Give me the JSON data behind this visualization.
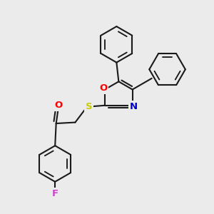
{
  "bg_color": "#ebebeb",
  "bond_color": "#1a1a1a",
  "bond_lw": 1.5,
  "dbo": 0.012,
  "figsize": [
    3.0,
    3.0
  ],
  "dpi": 100,
  "colors": {
    "O": "#ff0000",
    "N": "#0000cc",
    "S": "#cccc00",
    "F": "#cc44cc",
    "C": "#1a1a1a"
  },
  "label_fontsize": 9.5
}
